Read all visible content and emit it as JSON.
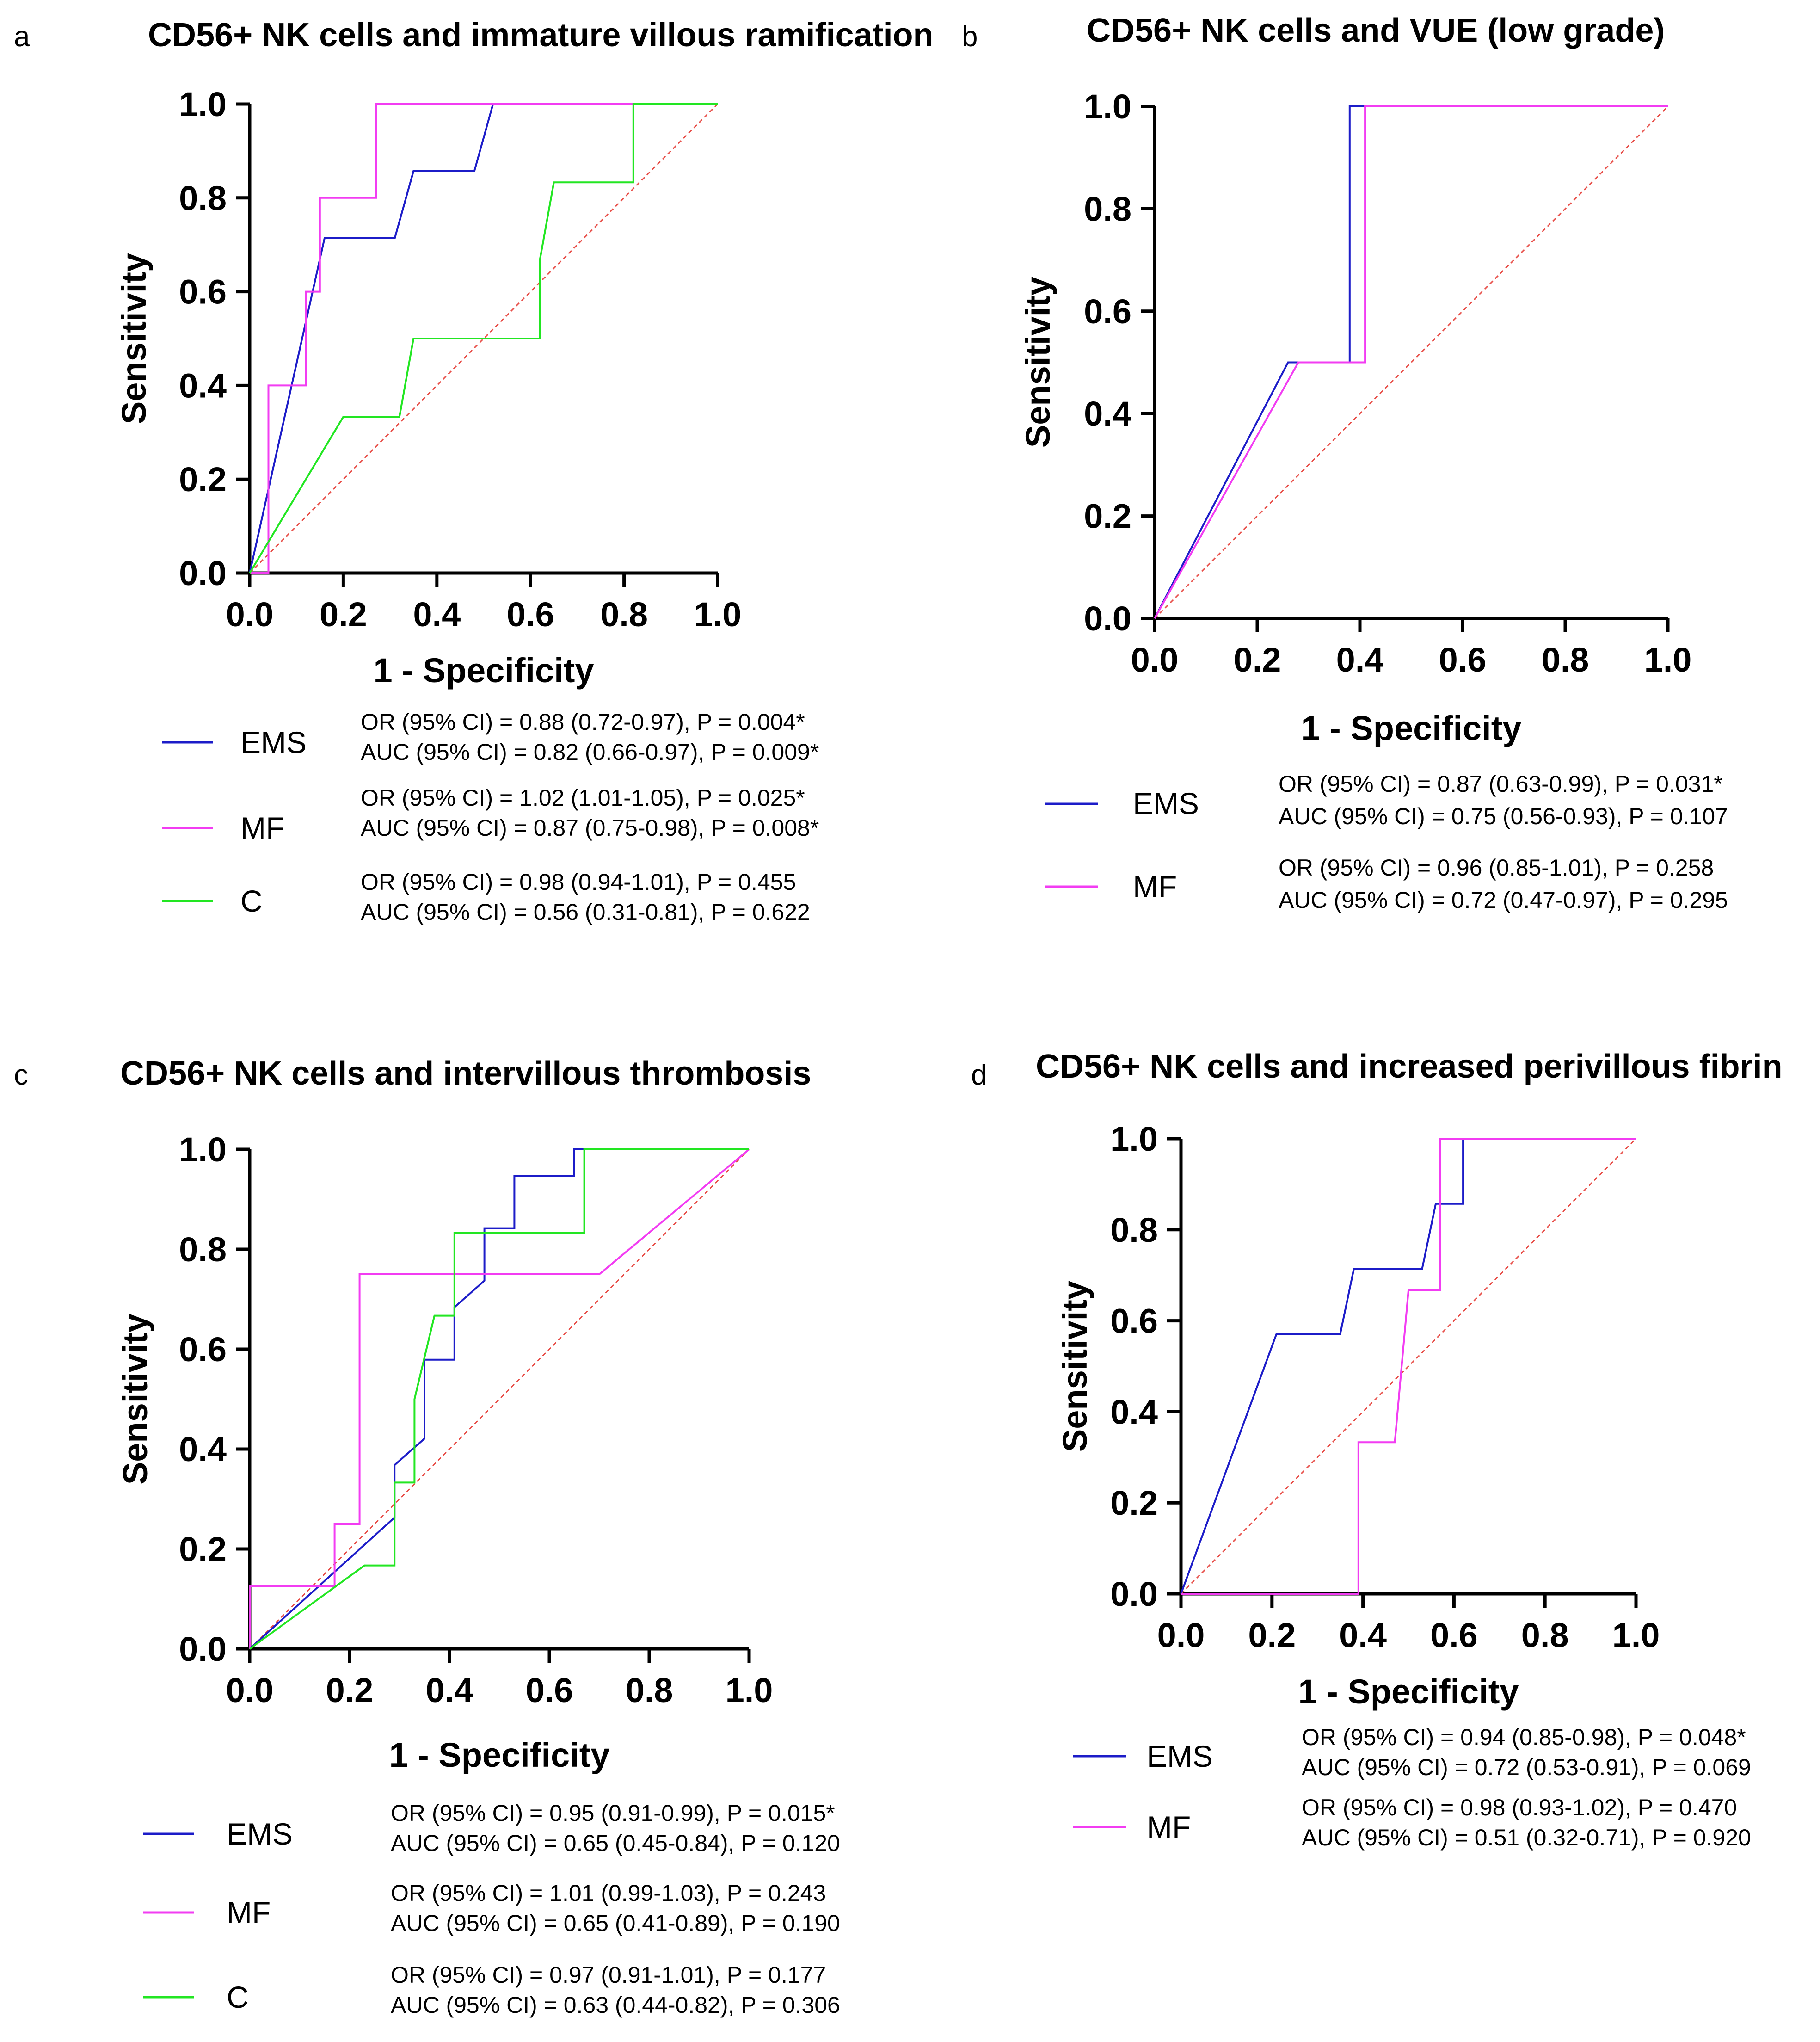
{
  "figure": {
    "panels": [
      {
        "letter": "a"
      },
      {
        "letter": "b"
      },
      {
        "letter": "c"
      },
      {
        "letter": "d"
      }
    ]
  },
  "chart_data": [
    {
      "type": "line",
      "title": "CD56+ NK cells and immature villous ramification",
      "xlabel": "1 - Specificity",
      "ylabel": "Sensitivity",
      "xlim": [
        0,
        1
      ],
      "ylim": [
        0,
        1
      ],
      "xticks": [
        "0.0",
        "0.2",
        "0.4",
        "0.6",
        "0.8",
        "1.0"
      ],
      "yticks": [
        "0.0",
        "0.2",
        "0.4",
        "0.6",
        "0.8",
        "1.0"
      ],
      "grid": false,
      "reference_line": {
        "color": "#e8504a",
        "style": "dashed",
        "x": [
          0,
          1
        ],
        "y": [
          0,
          1
        ]
      },
      "series": [
        {
          "name": "EMS",
          "color": "#1c1cc8",
          "stat_or": "OR (95% CI) = 0.88 (0.72-0.97), P = 0.004*",
          "stat_auc": "AUC (95% CI) = 0.82 (0.66-0.97), P = 0.009*",
          "x": [
            0,
            0.16,
            0.31,
            0.31,
            0.35,
            0.48,
            0.48,
            0.52,
            1.0
          ],
          "y": [
            0,
            0.714,
            0.714,
            0.714,
            0.857,
            0.857,
            0.857,
            1.0,
            1.0
          ]
        },
        {
          "name": "MF",
          "color": "#f23cf2",
          "stat_or": "OR (95% CI) = 1.02 (1.01-1.05), P = 0.025*",
          "stat_auc": "AUC (95% CI) = 0.87 (0.75-0.98), P = 0.008*",
          "x": [
            0,
            0.04,
            0.04,
            0.04,
            0.12,
            0.12,
            0.15,
            0.15,
            0.27,
            0.27,
            1.0
          ],
          "y": [
            0,
            0,
            0,
            0.4,
            0.4,
            0.6,
            0.6,
            0.8,
            0.8,
            1.0,
            1.0
          ]
        },
        {
          "name": "C",
          "color": "#22e622",
          "stat_or": "OR (95% CI) = 0.98 (0.94-1.01), P = 0.455",
          "stat_auc": "AUC (95% CI) = 0.56 (0.31-0.81), P = 0.622",
          "x": [
            0,
            0.2,
            0.32,
            0.35,
            0.62,
            0.62,
            0.65,
            0.82,
            0.82,
            1.0
          ],
          "y": [
            0,
            0.333,
            0.333,
            0.5,
            0.5,
            0.667,
            0.833,
            0.833,
            1.0,
            1.0
          ]
        }
      ]
    },
    {
      "type": "line",
      "title": "CD56+ NK cells and VUE (low grade)",
      "xlabel": "1 - Specificity",
      "ylabel": "Sensitivity",
      "xlim": [
        0,
        1
      ],
      "ylim": [
        0,
        1
      ],
      "xticks": [
        "0.0",
        "0.2",
        "0.4",
        "0.6",
        "0.8",
        "1.0"
      ],
      "yticks": [
        "0.0",
        "0.2",
        "0.4",
        "0.6",
        "0.8",
        "1.0"
      ],
      "grid": false,
      "reference_line": {
        "color": "#e8504a",
        "style": "dashed",
        "x": [
          0,
          1
        ],
        "y": [
          0,
          1
        ]
      },
      "series": [
        {
          "name": "EMS",
          "color": "#1c1cc8",
          "stat_or": "OR (95% CI) = 0.87 (0.63-0.99), P = 0.031*",
          "stat_auc": "AUC (95% CI) = 0.75 (0.56-0.93), P = 0.107",
          "x": [
            0,
            0.26,
            0.38,
            0.38,
            1.0
          ],
          "y": [
            0,
            0.5,
            0.5,
            1.0,
            1.0
          ]
        },
        {
          "name": "MF",
          "color": "#f23cf2",
          "stat_or": "OR (95% CI) = 0.96 (0.85-1.01), P = 0.258",
          "stat_auc": "AUC (95% CI) = 0.72 (0.47-0.97), P = 0.295",
          "x": [
            0,
            0.28,
            0.41,
            0.41,
            1.0
          ],
          "y": [
            0,
            0.5,
            0.5,
            1.0,
            1.0
          ]
        }
      ]
    },
    {
      "type": "line",
      "title": "CD56+ NK cells and intervillous thrombosis",
      "xlabel": "1 - Specificity",
      "ylabel": "Sensitivity",
      "xlim": [
        0,
        1
      ],
      "ylim": [
        0,
        1
      ],
      "xticks": [
        "0.0",
        "0.2",
        "0.4",
        "0.6",
        "0.8",
        "1.0"
      ],
      "yticks": [
        "0.0",
        "0.2",
        "0.4",
        "0.6",
        "0.8",
        "1.0"
      ],
      "grid": false,
      "reference_line": {
        "color": "#e8504a",
        "style": "dashed",
        "x": [
          0,
          1
        ],
        "y": [
          0,
          1
        ]
      },
      "series": [
        {
          "name": "EMS",
          "color": "#1c1cc8",
          "stat_or": "OR (95% CI) = 0.95 (0.91-0.99), P = 0.015*",
          "stat_auc": "AUC (95% CI) = 0.65 (0.45-0.84), P = 0.120",
          "x": [
            0,
            0.29,
            0.29,
            0.35,
            0.35,
            0.35,
            0.41,
            0.41,
            0.47,
            0.47,
            0.53,
            0.53,
            0.65,
            0.65,
            1.0
          ],
          "y": [
            0,
            0.263,
            0.368,
            0.421,
            0.579,
            0.579,
            0.579,
            0.684,
            0.737,
            0.842,
            0.842,
            0.947,
            0.947,
            1.0,
            1.0
          ]
        },
        {
          "name": "MF",
          "color": "#f23cf2",
          "stat_or": "OR (95% CI) = 1.01 (0.99-1.03), P = 0.243",
          "stat_auc": "AUC (95% CI) = 0.65 (0.41-0.89), P = 0.190",
          "x": [
            0,
            0,
            0.17,
            0.17,
            0.22,
            0.22,
            0.7,
            1.0
          ],
          "y": [
            0,
            0.125,
            0.125,
            0.25,
            0.25,
            0.75,
            0.75,
            1.0
          ]
        },
        {
          "name": "C",
          "color": "#22e622",
          "stat_or": "OR (95% CI) = 0.97 (0.91-1.01), P = 0.177",
          "stat_auc": "AUC (95% CI) = 0.63 (0.44-0.82), P = 0.306",
          "x": [
            0,
            0.23,
            0.29,
            0.29,
            0.33,
            0.33,
            0.37,
            0.41,
            0.41,
            0.67,
            0.67,
            1.0
          ],
          "y": [
            0,
            0.167,
            0.167,
            0.333,
            0.333,
            0.5,
            0.667,
            0.667,
            0.833,
            0.833,
            1.0,
            1.0
          ]
        }
      ]
    },
    {
      "type": "line",
      "title": "CD56+ NK cells and increased perivillous fibrin",
      "xlabel": "1 - Specificity",
      "ylabel": "Sensitivity",
      "xlim": [
        0,
        1
      ],
      "ylim": [
        0,
        1
      ],
      "xticks": [
        "0.0",
        "0.2",
        "0.4",
        "0.6",
        "0.8",
        "1.0"
      ],
      "yticks": [
        "0.0",
        "0.2",
        "0.4",
        "0.6",
        "0.8",
        "1.0"
      ],
      "grid": false,
      "reference_line": {
        "color": "#e8504a",
        "style": "dashed",
        "x": [
          0,
          1
        ],
        "y": [
          0,
          1
        ]
      },
      "series": [
        {
          "name": "EMS",
          "color": "#1c1cc8",
          "stat_or": "OR (95% CI) = 0.94 (0.85-0.98), P = 0.048*",
          "stat_auc": "AUC (95% CI) = 0.72 (0.53-0.91), P = 0.069",
          "x": [
            0,
            0.21,
            0.35,
            0.38,
            0.53,
            0.56,
            0.56,
            0.62,
            0.62,
            1.0
          ],
          "y": [
            0,
            0.571,
            0.571,
            0.714,
            0.714,
            0.857,
            0.857,
            0.857,
            1.0,
            1.0
          ]
        },
        {
          "name": "MF",
          "color": "#f23cf2",
          "stat_or": "OR (95% CI) = 0.98 (0.93-1.02), P = 0.470",
          "stat_auc": "AUC (95% CI) = 0.51 (0.32-0.71), P = 0.920",
          "x": [
            0,
            0.39,
            0.39,
            0.44,
            0.47,
            0.5,
            0.5,
            0.57,
            0.57,
            1.0
          ],
          "y": [
            0,
            0,
            0.333,
            0.333,
            0.333,
            0.667,
            0.667,
            0.667,
            1.0,
            1.0
          ]
        }
      ]
    }
  ]
}
